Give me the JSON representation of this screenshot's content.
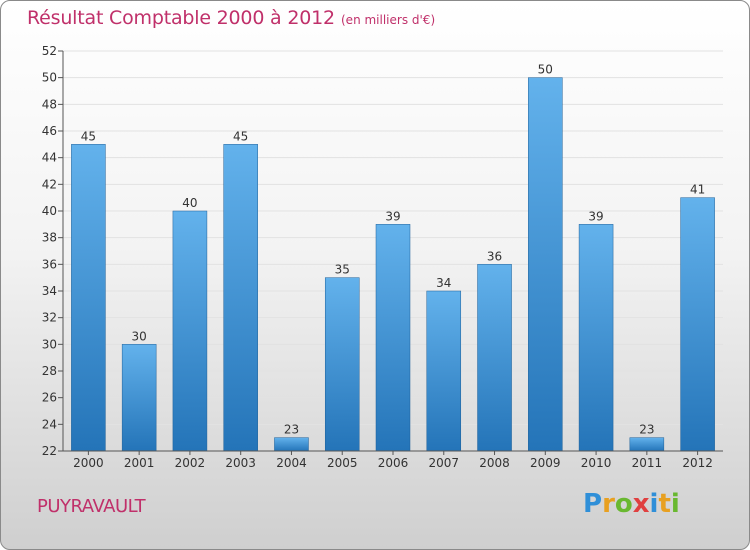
{
  "title": "Résultat Comptable 2000 à 2012",
  "subtitle": "(en milliers d'€)",
  "location": "PUYRAVAULT",
  "logo": {
    "letters": [
      "P",
      "r",
      "o",
      "x",
      "i",
      "t",
      "i"
    ],
    "colors": [
      "#2f8fd8",
      "#e8a020",
      "#69b830",
      "#e04040",
      "#2f8fd8",
      "#e8a020",
      "#69b830"
    ]
  },
  "colors": {
    "accent": "#c0306a",
    "bar_top": "#63b2ec",
    "bar_bottom": "#2474b8"
  },
  "chart_data": {
    "type": "bar",
    "title": "Résultat Comptable 2000 à 2012",
    "xlabel": "",
    "ylabel": "",
    "ylim": [
      22,
      52
    ],
    "yticks": [
      22,
      24,
      26,
      28,
      30,
      32,
      34,
      36,
      38,
      40,
      42,
      44,
      46,
      48,
      50,
      52
    ],
    "grid": true,
    "categories": [
      "2000",
      "2001",
      "2002",
      "2003",
      "2004",
      "2005",
      "2006",
      "2007",
      "2008",
      "2009",
      "2010",
      "2011",
      "2012"
    ],
    "values": [
      45,
      30,
      40,
      45,
      23,
      35,
      39,
      34,
      36,
      50,
      39,
      23,
      41
    ]
  }
}
